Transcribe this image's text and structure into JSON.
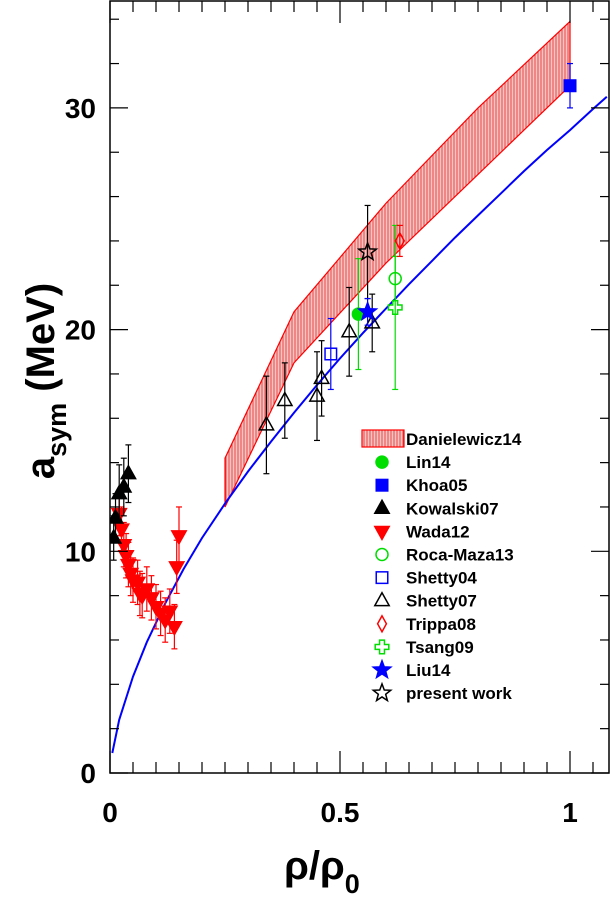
{
  "chart_data": {
    "type": "scatter",
    "xlabel": "ρ/ρ",
    "xlabel_sub": "0",
    "ylabel": "a",
    "ylabel_sub": "sym",
    "ylabel_units": " (MeV)",
    "xlim": [
      0,
      1.08
    ],
    "ylim": [
      0,
      34.5
    ],
    "x_ticks": [
      {
        "value": 0,
        "label": "0"
      },
      {
        "value": 0.5,
        "label": "0.5"
      },
      {
        "value": 1,
        "label": "1"
      }
    ],
    "y_ticks": [
      {
        "value": 0,
        "label": "0"
      },
      {
        "value": 10,
        "label": "10"
      },
      {
        "value": 20,
        "label": "20"
      },
      {
        "value": 30,
        "label": "30"
      }
    ],
    "grid": false,
    "legend_position": "lower-right",
    "colors": {
      "red": "#ff0000",
      "blue": "#0000ff",
      "green": "#00dd00",
      "black": "#000000",
      "band_fill": "#f5b0b0"
    },
    "band": {
      "name": "Danielewicz14",
      "x_lower": [
        0.25,
        0.4,
        0.6,
        0.8,
        1.0
      ],
      "lower": [
        12.0,
        18.5,
        23.0,
        27.0,
        31.0
      ],
      "x_upper": [
        0.25,
        0.4,
        0.6,
        0.8,
        1.0
      ],
      "upper": [
        14.2,
        20.8,
        25.7,
        30.0,
        33.9
      ]
    },
    "curve": {
      "color": "blue",
      "x": [
        0.005,
        0.02,
        0.05,
        0.08,
        0.12,
        0.16,
        0.2,
        0.25,
        0.3,
        0.35,
        0.4,
        0.45,
        0.5,
        0.55,
        0.6,
        0.65,
        0.7,
        0.75,
        0.8,
        0.85,
        0.9,
        0.95,
        1.0,
        1.05,
        1.08
      ],
      "y": [
        0.9,
        2.4,
        4.35,
        5.9,
        7.65,
        9.2,
        10.6,
        12.15,
        13.6,
        14.95,
        16.25,
        17.5,
        18.7,
        19.85,
        20.95,
        22.05,
        23.1,
        24.15,
        25.15,
        26.15,
        27.15,
        28.1,
        29.0,
        29.95,
        30.5
      ]
    },
    "series": [
      {
        "name": "Lin14",
        "marker": "circle-filled",
        "color": "green",
        "points": [
          {
            "x": 0.54,
            "y": 20.7,
            "err": 2.5
          }
        ]
      },
      {
        "name": "Khoa05",
        "marker": "square-filled",
        "color": "blue",
        "points": [
          {
            "x": 1.0,
            "y": 31.0,
            "err": 1.0
          }
        ]
      },
      {
        "name": "Kowalski07",
        "marker": "triangle-up-filled",
        "color": "black",
        "points": [
          {
            "x": 0.008,
            "y": 10.6,
            "err": 1.0
          },
          {
            "x": 0.012,
            "y": 11.5,
            "err": 1.1
          },
          {
            "x": 0.02,
            "y": 12.6,
            "err": 1.3
          },
          {
            "x": 0.03,
            "y": 12.9,
            "err": 1.3
          },
          {
            "x": 0.04,
            "y": 13.5,
            "err": 1.3
          }
        ]
      },
      {
        "name": "Wada12",
        "marker": "triangle-down-filled",
        "color": "red",
        "points": [
          {
            "x": 0.02,
            "y": 11.7,
            "err": 1.0
          },
          {
            "x": 0.025,
            "y": 11.0,
            "err": 1.0
          },
          {
            "x": 0.03,
            "y": 10.3,
            "err": 1.0
          },
          {
            "x": 0.035,
            "y": 9.8,
            "err": 1.0
          },
          {
            "x": 0.04,
            "y": 9.4,
            "err": 1.0
          },
          {
            "x": 0.045,
            "y": 9.0,
            "err": 1.0
          },
          {
            "x": 0.05,
            "y": 8.7,
            "err": 1.0
          },
          {
            "x": 0.06,
            "y": 8.6,
            "err": 1.0
          },
          {
            "x": 0.065,
            "y": 8.1,
            "err": 1.0
          },
          {
            "x": 0.07,
            "y": 8.0,
            "err": 1.0
          },
          {
            "x": 0.08,
            "y": 8.3,
            "err": 1.0
          },
          {
            "x": 0.09,
            "y": 7.9,
            "err": 1.0
          },
          {
            "x": 0.1,
            "y": 7.5,
            "err": 1.0
          },
          {
            "x": 0.11,
            "y": 7.2,
            "err": 1.0
          },
          {
            "x": 0.12,
            "y": 6.9,
            "err": 1.0
          },
          {
            "x": 0.13,
            "y": 7.3,
            "err": 1.0
          },
          {
            "x": 0.14,
            "y": 6.6,
            "err": 1.0
          },
          {
            "x": 0.145,
            "y": 9.3,
            "err": 1.2
          },
          {
            "x": 0.15,
            "y": 10.7,
            "err": 1.3
          }
        ]
      },
      {
        "name": "Roca-Maza13",
        "marker": "circle-open",
        "color": "green",
        "points": [
          {
            "x": 0.62,
            "y": 22.3,
            "err": 1.0
          }
        ]
      },
      {
        "name": "Shetty04",
        "marker": "square-open",
        "color": "blue",
        "points": [
          {
            "x": 0.48,
            "y": 18.9,
            "err": 1.6
          }
        ]
      },
      {
        "name": "Shetty07",
        "marker": "triangle-up-open",
        "color": "black",
        "points": [
          {
            "x": 0.34,
            "y": 15.7,
            "err": 2.2
          },
          {
            "x": 0.38,
            "y": 16.8,
            "err": 1.7
          },
          {
            "x": 0.45,
            "y": 17.0,
            "err": 2.0
          },
          {
            "x": 0.46,
            "y": 17.8,
            "err": 1.7
          },
          {
            "x": 0.52,
            "y": 19.9,
            "err": 2.0
          },
          {
            "x": 0.57,
            "y": 20.3,
            "err": 1.3
          }
        ]
      },
      {
        "name": "Trippa08",
        "marker": "diamond-open",
        "color": "red",
        "points": [
          {
            "x": 0.63,
            "y": 24.0,
            "err": 0.7
          }
        ]
      },
      {
        "name": "Tsang09",
        "marker": "cross-open",
        "color": "green",
        "points": [
          {
            "x": 0.62,
            "y": 21.0,
            "err": 3.7
          }
        ]
      },
      {
        "name": "Liu14",
        "marker": "star-filled",
        "color": "blue",
        "points": [
          {
            "x": 0.56,
            "y": 20.8,
            "err": 0.6
          }
        ]
      },
      {
        "name": "present work",
        "marker": "star-open",
        "color": "black",
        "points": [
          {
            "x": 0.56,
            "y": 23.5,
            "err": 2.1
          }
        ]
      }
    ],
    "legend": [
      {
        "label": "Danielewicz14",
        "marker": "band",
        "color": "red"
      },
      {
        "label": "Lin14",
        "marker": "circle-filled",
        "color": "green"
      },
      {
        "label": "Khoa05",
        "marker": "square-filled",
        "color": "blue"
      },
      {
        "label": "Kowalski07",
        "marker": "triangle-up-filled",
        "color": "black"
      },
      {
        "label": "Wada12",
        "marker": "triangle-down-filled",
        "color": "red"
      },
      {
        "label": "Roca-Maza13",
        "marker": "circle-open",
        "color": "green"
      },
      {
        "label": "Shetty04",
        "marker": "square-open",
        "color": "blue"
      },
      {
        "label": "Shetty07",
        "marker": "triangle-up-open",
        "color": "black"
      },
      {
        "label": "Trippa08",
        "marker": "diamond-open",
        "color": "red"
      },
      {
        "label": "Tsang09",
        "marker": "cross-open",
        "color": "green"
      },
      {
        "label": "Liu14",
        "marker": "star-filled",
        "color": "blue"
      },
      {
        "label": "present work",
        "marker": "star-open",
        "color": "black"
      }
    ]
  }
}
